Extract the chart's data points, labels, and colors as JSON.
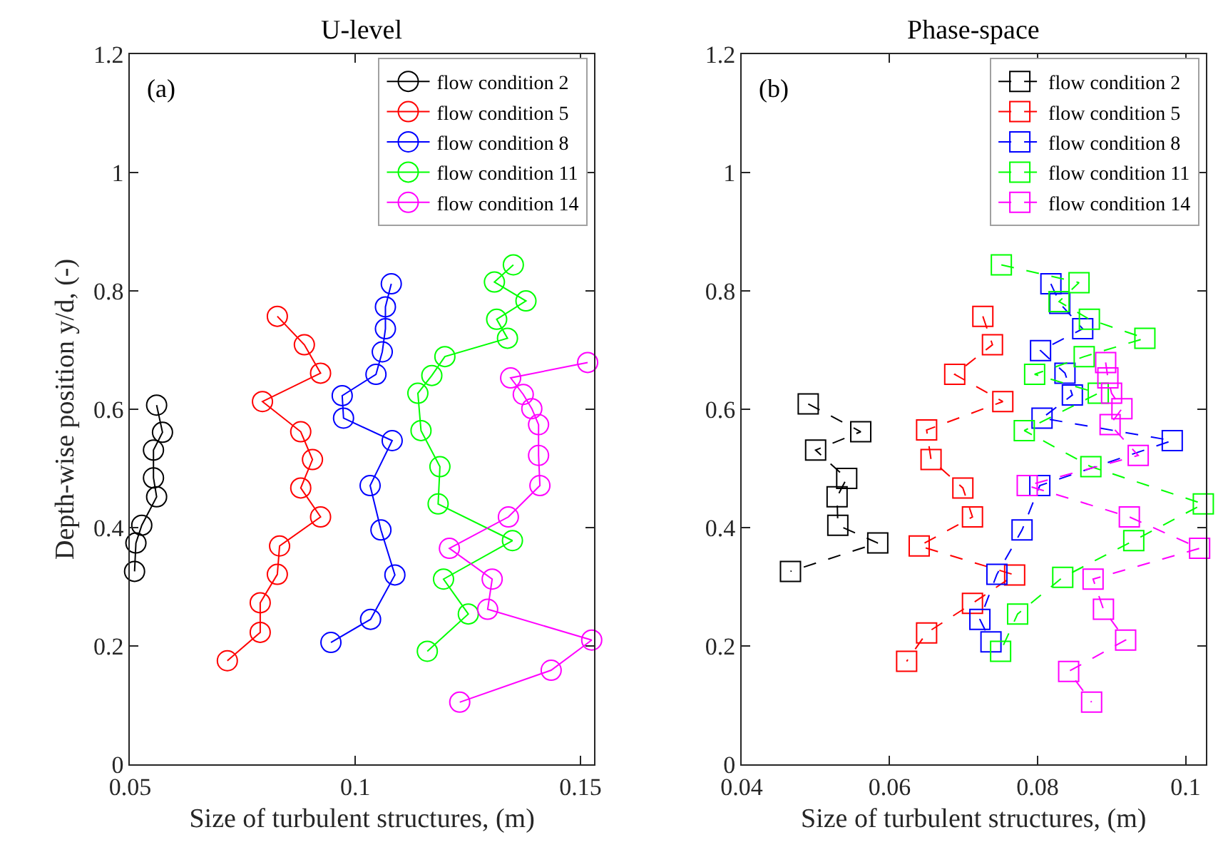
{
  "chart_data": [
    {
      "type": "line",
      "title": "U-level",
      "xlabel": "Size of turbulent structures, (m)",
      "ylabel": "Depth-wise position y/d, (-)",
      "annotations": [
        "(a)"
      ],
      "marker": "circle",
      "line_style": "solid",
      "legend": "top right",
      "xlim": [
        0.05,
        0.153
      ],
      "xticks": [
        0.05,
        0.1,
        0.15
      ],
      "ylim": [
        0,
        1.2
      ],
      "yticks": [
        0,
        0.2,
        0.4,
        0.6,
        0.8,
        1,
        1.2
      ],
      "series": [
        {
          "name": "flow condition 2",
          "color": "#000000",
          "x": [
            0.0559,
            0.0572,
            0.0552,
            0.0552,
            0.0559,
            0.0526,
            0.0513,
            0.051
          ],
          "values": [
            0.607,
            0.561,
            0.531,
            0.484,
            0.452,
            0.404,
            0.374,
            0.326
          ]
        },
        {
          "name": "flow condition 5",
          "color": "#ff0000",
          "x": [
            0.0827,
            0.0887,
            0.0923,
            0.0794,
            0.0879,
            0.0905,
            0.0879,
            0.0923,
            0.0832,
            0.0827,
            0.0789,
            0.0789,
            0.0716
          ],
          "values": [
            0.757,
            0.709,
            0.661,
            0.613,
            0.562,
            0.515,
            0.467,
            0.418,
            0.369,
            0.321,
            0.273,
            0.223,
            0.175
          ]
        },
        {
          "name": "flow condition 8",
          "color": "#0000ff",
          "x": [
            0.108,
            0.1067,
            0.1067,
            0.106,
            0.1046,
            0.0971,
            0.0974,
            0.1082,
            0.1033,
            0.1057,
            0.1088,
            0.1034,
            0.0946
          ],
          "values": [
            0.812,
            0.773,
            0.736,
            0.697,
            0.659,
            0.623,
            0.585,
            0.547,
            0.471,
            0.396,
            0.32,
            0.245,
            0.206
          ]
        },
        {
          "name": "flow condition 11",
          "color": "#00ff00",
          "x": [
            0.1351,
            0.1309,
            0.1379,
            0.1314,
            0.1338,
            0.1199,
            0.117,
            0.1139,
            0.1146,
            0.1188,
            0.1184,
            0.1349,
            0.1196,
            0.1251,
            0.116
          ],
          "values": [
            0.844,
            0.815,
            0.783,
            0.752,
            0.72,
            0.689,
            0.657,
            0.627,
            0.564,
            0.503,
            0.44,
            0.378,
            0.313,
            0.254,
            0.191
          ]
        },
        {
          "name": "flow condition 14",
          "color": "#ff00ff",
          "x": [
            0.1516,
            0.1345,
            0.1373,
            0.1392,
            0.1407,
            0.1407,
            0.141,
            0.134,
            0.1209,
            0.1304,
            0.1294,
            0.1525,
            0.1435,
            0.1232
          ],
          "values": [
            0.679,
            0.653,
            0.625,
            0.601,
            0.574,
            0.522,
            0.471,
            0.418,
            0.365,
            0.313,
            0.262,
            0.21,
            0.159,
            0.105
          ]
        }
      ]
    },
    {
      "type": "line",
      "title": "Phase-space",
      "xlabel": "Size of turbulent structures, (m)",
      "annotations": [
        "(b)"
      ],
      "marker": "square",
      "line_style": "dashed",
      "legend": "top right",
      "xlim": [
        0.04,
        0.1027
      ],
      "xticks": [
        0.04,
        0.06,
        0.08,
        0.1
      ],
      "ylim": [
        0,
        1.2
      ],
      "yticks": [
        0,
        0.2,
        0.4,
        0.6,
        0.8,
        1,
        1.2
      ],
      "series": [
        {
          "name": "flow condition 2",
          "color": "#000000",
          "x": [
            0.049,
            0.0561,
            0.05,
            0.0542,
            0.0529,
            0.053,
            0.0584,
            0.0466
          ],
          "values": [
            0.609,
            0.562,
            0.531,
            0.483,
            0.452,
            0.404,
            0.374,
            0.326
          ]
        },
        {
          "name": "flow condition 5",
          "color": "#ff0000",
          "x": [
            0.0726,
            0.0739,
            0.0688,
            0.0753,
            0.065,
            0.0656,
            0.0699,
            0.0712,
            0.064,
            0.0769,
            0.0712,
            0.065,
            0.0623
          ],
          "values": [
            0.757,
            0.709,
            0.659,
            0.613,
            0.565,
            0.515,
            0.467,
            0.418,
            0.369,
            0.32,
            0.272,
            0.222,
            0.174
          ]
        },
        {
          "name": "flow condition 8",
          "color": "#0000ff",
          "x": [
            0.0818,
            0.083,
            0.0861,
            0.0804,
            0.0837,
            0.0847,
            0.0806,
            0.0982,
            0.0803,
            0.0779,
            0.0745,
            0.0722,
            0.0737
          ],
          "values": [
            0.812,
            0.779,
            0.736,
            0.699,
            0.661,
            0.624,
            0.585,
            0.547,
            0.471,
            0.396,
            0.321,
            0.245,
            0.207
          ]
        },
        {
          "name": "flow condition 11",
          "color": "#00ff00",
          "x": [
            0.0751,
            0.0856,
            0.0829,
            0.087,
            0.0945,
            0.0863,
            0.0796,
            0.0882,
            0.0782,
            0.0872,
            0.1024,
            0.093,
            0.0834,
            0.0773,
            0.075
          ],
          "values": [
            0.844,
            0.814,
            0.782,
            0.752,
            0.72,
            0.689,
            0.659,
            0.627,
            0.564,
            0.503,
            0.44,
            0.378,
            0.316,
            0.254,
            0.191
          ]
        },
        {
          "name": "flow condition 14",
          "color": "#ff00ff",
          "x": [
            0.0892,
            0.0895,
            0.09,
            0.0914,
            0.0898,
            0.0936,
            0.0786,
            0.0924,
            0.1019,
            0.0875,
            0.0889,
            0.0919,
            0.0842,
            0.0873
          ],
          "values": [
            0.679,
            0.653,
            0.627,
            0.601,
            0.574,
            0.522,
            0.471,
            0.418,
            0.365,
            0.313,
            0.262,
            0.21,
            0.157,
            0.105
          ]
        }
      ]
    }
  ]
}
